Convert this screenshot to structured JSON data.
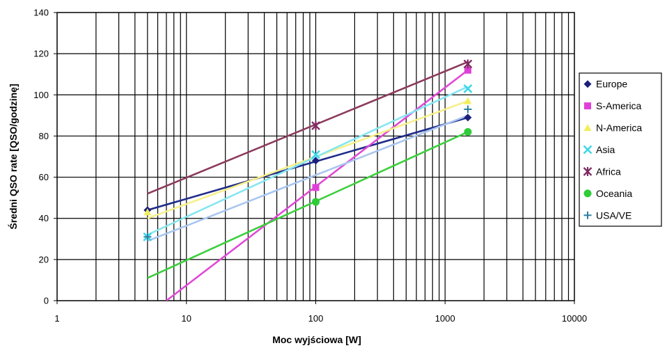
{
  "chart_data": {
    "type": "scatter",
    "title": "",
    "xlabel": "Moc wyjściowa [W]",
    "ylabel": "Średni QSO rate [QSO/godzinę]",
    "xscale": "log",
    "xlim": [
      1,
      10000
    ],
    "ylim": [
      0,
      140
    ],
    "xticks": [
      1,
      10,
      100,
      1000,
      10000
    ],
    "yticks": [
      0,
      20,
      40,
      60,
      80,
      100,
      120,
      140
    ],
    "grid": true,
    "legend_position": "right",
    "series": [
      {
        "name": "Europe",
        "marker": "diamond",
        "color": "#1b1f7a",
        "line_color": "#1f2a8a",
        "x": [
          5,
          100,
          1500
        ],
        "y": [
          44,
          68,
          89
        ],
        "trendline": {
          "x": [
            5,
            1500
          ],
          "y": [
            44,
            89
          ]
        }
      },
      {
        "name": "S-America",
        "marker": "square",
        "color": "#e040d8",
        "line_color": "#e04ad6",
        "x": [
          100,
          1500
        ],
        "y": [
          55,
          112
        ],
        "trendline": {
          "x": [
            7,
            1500
          ],
          "y": [
            0,
            112
          ]
        }
      },
      {
        "name": "N-America",
        "marker": "triangle",
        "color": "#f2ee5a",
        "line_color": "#f6f08a",
        "x": [
          5,
          1500
        ],
        "y": [
          43,
          97
        ],
        "trendline": {
          "x": [
            5,
            1500
          ],
          "y": [
            40,
            97
          ]
        }
      },
      {
        "name": "Asia",
        "marker": "x",
        "color": "#3fd6e6",
        "line_color": "#86e6f0",
        "x": [
          5,
          100,
          1500
        ],
        "y": [
          31,
          71,
          103
        ],
        "trendline": {
          "x": [
            5,
            1500
          ],
          "y": [
            32,
            104
          ]
        }
      },
      {
        "name": "Africa",
        "marker": "star",
        "color": "#7e2a62",
        "line_color": "#8c3a5c",
        "x": [
          100,
          1500
        ],
        "y": [
          85,
          115
        ],
        "trendline": {
          "x": [
            5,
            1500
          ],
          "y": [
            52,
            116
          ]
        }
      },
      {
        "name": "Oceania",
        "marker": "circle",
        "color": "#2fcc3a",
        "line_color": "#3ccf3c",
        "x": [
          100,
          1500
        ],
        "y": [
          48,
          82
        ],
        "trendline": {
          "x": [
            5,
            1500
          ],
          "y": [
            11,
            82
          ]
        }
      },
      {
        "name": "USA/VE",
        "marker": "plus",
        "color": "#2a7fa0",
        "line_color": "#a9c6ef",
        "x": [
          5,
          1500
        ],
        "y": [
          31,
          93
        ],
        "trendline": {
          "x": [
            5,
            1500
          ],
          "y": [
            29,
            90
          ]
        }
      }
    ]
  }
}
